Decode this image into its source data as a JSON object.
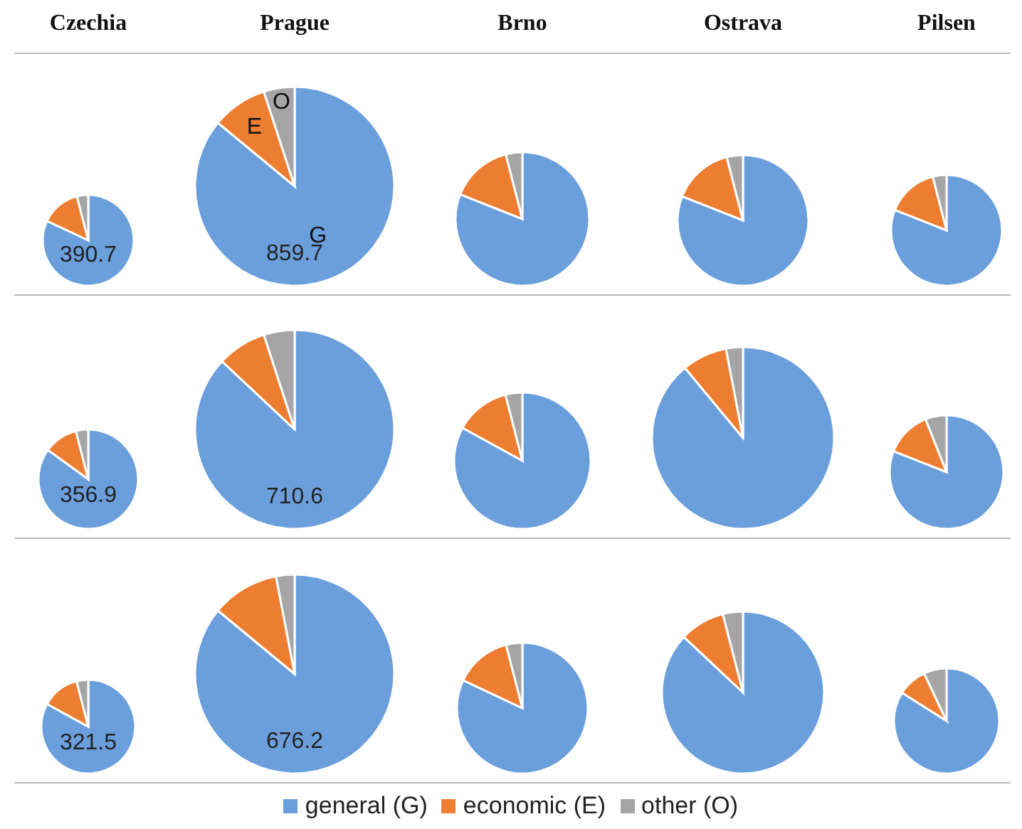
{
  "chart_data": [
    {
      "type": "pie",
      "title": "Czechia",
      "categories": [
        "general (G)",
        "economic (E)",
        "other (O)"
      ],
      "values": [
        82,
        14,
        4
      ],
      "colors": [
        "#6a9fdc",
        "#ed7d31",
        "#a5a5a5"
      ],
      "annotations": [
        "390.7"
      ],
      "legend": "bottom"
    },
    {
      "type": "pie",
      "title": "Prague",
      "categories": [
        null,
        null,
        null
      ],
      "values": [
        86,
        9,
        5
      ],
      "colors": [
        "#6a9fdc",
        "#ed7d31",
        "#a5a5a5"
      ],
      "value_labels": [
        "G",
        "E",
        "O"
      ],
      "annotations": [
        "859.7"
      ]
    },
    {
      "type": "pie",
      "title": "Brno",
      "categories": [
        null,
        null,
        null
      ],
      "values": [
        81,
        15,
        4
      ],
      "colors": [
        "#6a9fdc",
        "#ed7d31",
        "#a5a5a5"
      ]
    },
    {
      "type": "pie",
      "title": "Ostrava",
      "categories": [
        null,
        null,
        null
      ],
      "values": [
        81,
        15,
        4
      ],
      "colors": [
        "#6a9fdc",
        "#ed7d31",
        "#a5a5a5"
      ]
    },
    {
      "type": "pie",
      "title": "Pilsen",
      "categories": [
        null,
        null,
        null
      ],
      "values": [
        81,
        15,
        4
      ],
      "colors": [
        "#6a9fdc",
        "#ed7d31",
        "#a5a5a5"
      ]
    },
    {
      "type": "pie",
      "categories": [
        null,
        null,
        null
      ],
      "values": [
        85,
        11,
        4
      ],
      "colors": [
        "#6a9fdc",
        "#ed7d31",
        "#a5a5a5"
      ],
      "annotations": [
        "356.9"
      ]
    },
    {
      "type": "pie",
      "categories": [
        null,
        null,
        null
      ],
      "values": [
        87,
        8,
        5
      ],
      "colors": [
        "#6a9fdc",
        "#ed7d31",
        "#a5a5a5"
      ],
      "annotations": [
        "710.6"
      ]
    },
    {
      "type": "pie",
      "categories": [
        null,
        null,
        null
      ],
      "values": [
        83,
        13,
        4
      ],
      "colors": [
        "#6a9fdc",
        "#ed7d31",
        "#a5a5a5"
      ]
    },
    {
      "type": "pie",
      "categories": [
        null,
        null,
        null
      ],
      "values": [
        89,
        8,
        3
      ],
      "colors": [
        "#6a9fdc",
        "#ed7d31",
        "#a5a5a5"
      ]
    },
    {
      "type": "pie",
      "categories": [
        null,
        null,
        null
      ],
      "values": [
        81,
        13,
        6
      ],
      "colors": [
        "#6a9fdc",
        "#ed7d31",
        "#a5a5a5"
      ]
    },
    {
      "type": "pie",
      "categories": [
        null,
        null,
        null
      ],
      "values": [
        83,
        13,
        4
      ],
      "colors": [
        "#6a9fdc",
        "#ed7d31",
        "#a5a5a5"
      ],
      "annotations": [
        "321.5"
      ]
    },
    {
      "type": "pie",
      "categories": [
        null,
        null,
        null
      ],
      "values": [
        86,
        11,
        3
      ],
      "colors": [
        "#6a9fdc",
        "#ed7d31",
        "#a5a5a5"
      ],
      "annotations": [
        "676.2"
      ]
    },
    {
      "type": "pie",
      "categories": [
        null,
        null,
        null
      ],
      "values": [
        82,
        14,
        4
      ],
      "colors": [
        "#6a9fdc",
        "#ed7d31",
        "#a5a5a5"
      ]
    },
    {
      "type": "pie",
      "categories": [
        null,
        null,
        null
      ],
      "values": [
        87,
        9,
        4
      ],
      "colors": [
        "#6a9fdc",
        "#ed7d31",
        "#a5a5a5"
      ]
    },
    {
      "type": "pie",
      "categories": [
        null,
        null,
        null
      ],
      "values": [
        84,
        9,
        7
      ],
      "colors": [
        "#6a9fdc",
        "#ed7d31",
        "#a5a5a5"
      ]
    }
  ]
}
